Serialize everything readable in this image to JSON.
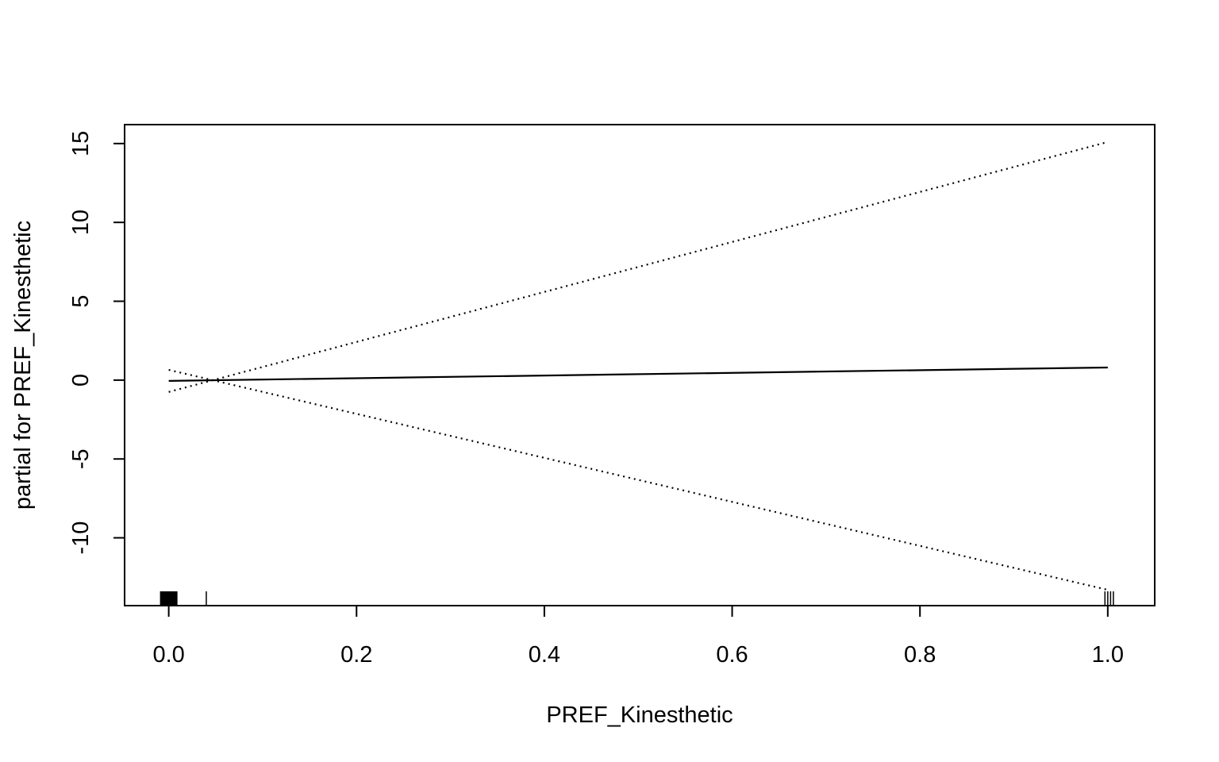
{
  "chart_data": {
    "type": "line",
    "xlabel": "PREF_Kinesthetic",
    "ylabel": "partial for PREF_Kinesthetic",
    "xlim": [
      -0.047,
      1.05
    ],
    "ylim": [
      -14.3,
      16.2
    ],
    "xticks": [
      0.0,
      0.2,
      0.4,
      0.6,
      0.8,
      1.0
    ],
    "xtick_labels": [
      "0.0",
      "0.2",
      "0.4",
      "0.6",
      "0.8",
      "1.0"
    ],
    "yticks": [
      -10,
      -5,
      0,
      5,
      10,
      15
    ],
    "ytick_labels": [
      "-10",
      "-5",
      "0",
      "5",
      "10",
      "15"
    ],
    "grid": false,
    "series": [
      {
        "style": "solid",
        "x": [
          0.0,
          1.0
        ],
        "y": [
          -0.05,
          0.8
        ]
      },
      {
        "style": "dotted",
        "x": [
          0.0,
          1.0
        ],
        "y": [
          -0.75,
          15.1
        ]
      },
      {
        "style": "dotted",
        "x": [
          0.0,
          1.0
        ],
        "y": [
          0.65,
          -13.3
        ]
      }
    ],
    "rug": [
      0.0,
      0.0,
      0.0,
      0.0,
      0.0,
      0.0,
      0.0,
      0.0,
      0.0,
      0.0,
      0.0,
      0.04,
      0.997,
      1.0,
      1.0,
      1.003,
      1.006
    ]
  }
}
